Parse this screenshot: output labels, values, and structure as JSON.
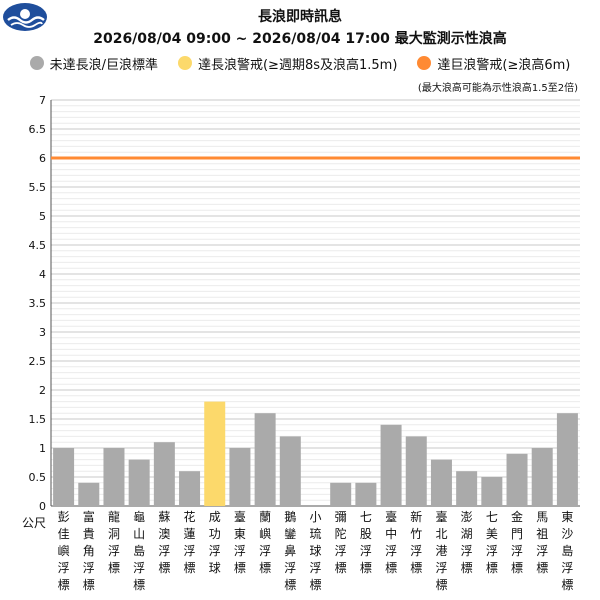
{
  "header": {
    "title": "長浪即時訊息",
    "subtitle": "2026/08/04 09:00 ~ 2026/08/04 17:00 最大監測示性浪高"
  },
  "legend": [
    {
      "label": "未達長浪/巨浪標準",
      "color": "#aaaaaa"
    },
    {
      "label": "達長浪警戒(≥週期8s及浪高1.5m)",
      "color": "#fcd96b"
    },
    {
      "label": "達巨浪警戒(≥浪高6m)",
      "color": "#ff8a33"
    }
  ],
  "chart_data": {
    "type": "bar",
    "note": "(最大浪高可能為示性浪高1.5至2倍)",
    "ylabel": "公尺",
    "ylim": [
      0,
      7
    ],
    "yticks": [
      "0",
      "0.5",
      "1",
      "1.5",
      "2",
      "2.5",
      "3",
      "3.5",
      "4",
      "4.5",
      "5",
      "5.5",
      "6",
      "6.5",
      "7"
    ],
    "grid": true,
    "threshold": {
      "value": 6,
      "color": "#ff8a33"
    },
    "colors": {
      "normal": "#aaaaaa",
      "warning": "#fcd96b"
    },
    "categories": [
      "彭佳嶼浮標",
      "富貴角浮標",
      "龍洞浮標",
      "龜山島浮標",
      "蘇澳浮標",
      "花蓮浮標",
      "成功浮球",
      "臺東浮標",
      "蘭嶼浮標",
      "鵝鑾鼻浮標",
      "小琉球浮標",
      "彌陀浮標",
      "七股浮標",
      "臺中浮標",
      "新竹浮標",
      "臺北港浮標",
      "澎湖浮標",
      "七美浮標",
      "金門浮標",
      "馬祖浮標",
      "東沙島浮標"
    ],
    "values": [
      1.0,
      0.4,
      1.0,
      0.8,
      1.1,
      0.6,
      1.8,
      1.0,
      1.6,
      1.2,
      null,
      0.4,
      0.4,
      1.4,
      1.2,
      0.8,
      0.6,
      0.5,
      0.9,
      1.0,
      1.6
    ],
    "status": [
      "normal",
      "normal",
      "normal",
      "normal",
      "normal",
      "normal",
      "warning",
      "normal",
      "normal",
      "normal",
      "normal",
      "normal",
      "normal",
      "normal",
      "normal",
      "normal",
      "normal",
      "normal",
      "normal",
      "normal",
      "normal"
    ]
  }
}
